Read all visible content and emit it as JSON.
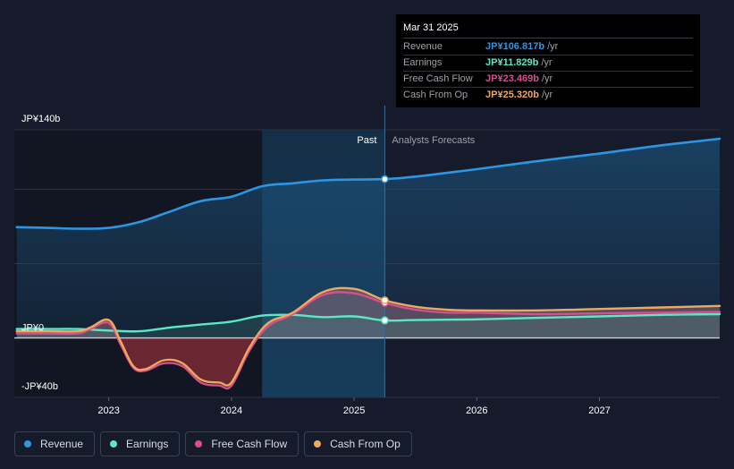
{
  "chart_data": {
    "type": "area",
    "currency_unit": "JP¥ b",
    "y_tick_labels": [
      "JP¥140b",
      "JP¥0",
      "-JP¥40b"
    ],
    "y_ticks": [
      140,
      0,
      -40
    ],
    "ylim": [
      -40,
      140
    ],
    "x_tick_labels": [
      "2023",
      "2024",
      "2025",
      "2026",
      "2027"
    ],
    "x_ticks": [
      2023.0,
      2024.0,
      2025.0,
      2026.0,
      2027.0
    ],
    "xlim": [
      2022.23,
      2027.98
    ],
    "past_label": "Past",
    "forecast_label": "Analysts Forecasts",
    "divider_x": 2025.25,
    "highlight_start_x": 2024.25,
    "series": [
      {
        "name": "Revenue",
        "color": "#2d95e3",
        "x": [
          2022.25,
          2022.5,
          2022.75,
          2023.0,
          2023.25,
          2023.5,
          2023.75,
          2024.0,
          2024.25,
          2024.5,
          2024.75,
          2025.0,
          2025.25,
          2025.5,
          2025.75,
          2026.0,
          2026.5,
          2027.0,
          2027.5,
          2027.98
        ],
        "y": [
          74.5,
          74,
          73.5,
          74,
          78,
          85,
          92,
          95,
          102,
          104,
          106,
          106.5,
          106.8,
          108.5,
          111,
          113.5,
          119,
          124,
          129.5,
          134
        ]
      },
      {
        "name": "Earnings",
        "color": "#5ce8c5",
        "x": [
          2022.25,
          2022.5,
          2022.75,
          2023.0,
          2023.25,
          2023.5,
          2023.75,
          2024.0,
          2024.25,
          2024.5,
          2024.75,
          2025.0,
          2025.25,
          2025.5,
          2026.0,
          2026.5,
          2027.0,
          2027.5,
          2027.98
        ],
        "y": [
          6,
          6,
          6,
          5,
          4.5,
          7,
          9,
          11,
          15,
          15.5,
          14,
          14.5,
          11.8,
          12,
          12.5,
          13.5,
          14.5,
          15.5,
          16
        ]
      },
      {
        "name": "Free Cash Flow",
        "color": "#d94f8b",
        "x": [
          2022.25,
          2022.5,
          2022.75,
          2022.85,
          2023.0,
          2023.1,
          2023.2,
          2023.3,
          2023.45,
          2023.6,
          2023.75,
          2023.9,
          2024.0,
          2024.15,
          2024.3,
          2024.5,
          2024.75,
          2025.0,
          2025.25,
          2025.5,
          2025.75,
          2026.0,
          2026.5,
          2027.0,
          2027.5,
          2027.98
        ],
        "y": [
          3,
          3,
          3,
          6,
          10,
          -5,
          -20,
          -22,
          -17,
          -19,
          -30,
          -32,
          -32,
          -8,
          8,
          16,
          29,
          30,
          23.5,
          19,
          17,
          17,
          16,
          16.5,
          17,
          17.5
        ]
      },
      {
        "name": "Cash From Op",
        "color": "#eea95c",
        "x": [
          2022.25,
          2022.5,
          2022.75,
          2022.85,
          2023.0,
          2023.1,
          2023.2,
          2023.3,
          2023.45,
          2023.6,
          2023.75,
          2023.9,
          2024.0,
          2024.15,
          2024.3,
          2024.5,
          2024.75,
          2025.0,
          2025.25,
          2025.5,
          2025.75,
          2026.0,
          2026.5,
          2027.0,
          2027.5,
          2027.98
        ],
        "y": [
          4.5,
          4.5,
          4.5,
          7,
          12,
          -3,
          -19,
          -21,
          -15,
          -17,
          -28,
          -30,
          -30,
          -6,
          10,
          17,
          31,
          33,
          25.3,
          21,
          19,
          18.5,
          18.5,
          19.5,
          20.5,
          21.5
        ]
      }
    ]
  },
  "tooltip": {
    "date": "Mar 31 2025",
    "rows": [
      {
        "label": "Revenue",
        "value": "JP¥106.817b",
        "unit": "/yr",
        "color": "#2d95e3"
      },
      {
        "label": "Earnings",
        "value": "JP¥11.829b",
        "unit": "/yr",
        "color": "#5ce8c5"
      },
      {
        "label": "Free Cash Flow",
        "value": "JP¥23.469b",
        "unit": "/yr",
        "color": "#d94f8b"
      },
      {
        "label": "Cash From Op",
        "value": "JP¥25.320b",
        "unit": "/yr",
        "color": "#eea95c"
      }
    ]
  },
  "legend": [
    {
      "label": "Revenue",
      "color": "#2d95e3"
    },
    {
      "label": "Earnings",
      "color": "#5ce8c5"
    },
    {
      "label": "Free Cash Flow",
      "color": "#d94f8b"
    },
    {
      "label": "Cash From Op",
      "color": "#eea95c"
    }
  ]
}
